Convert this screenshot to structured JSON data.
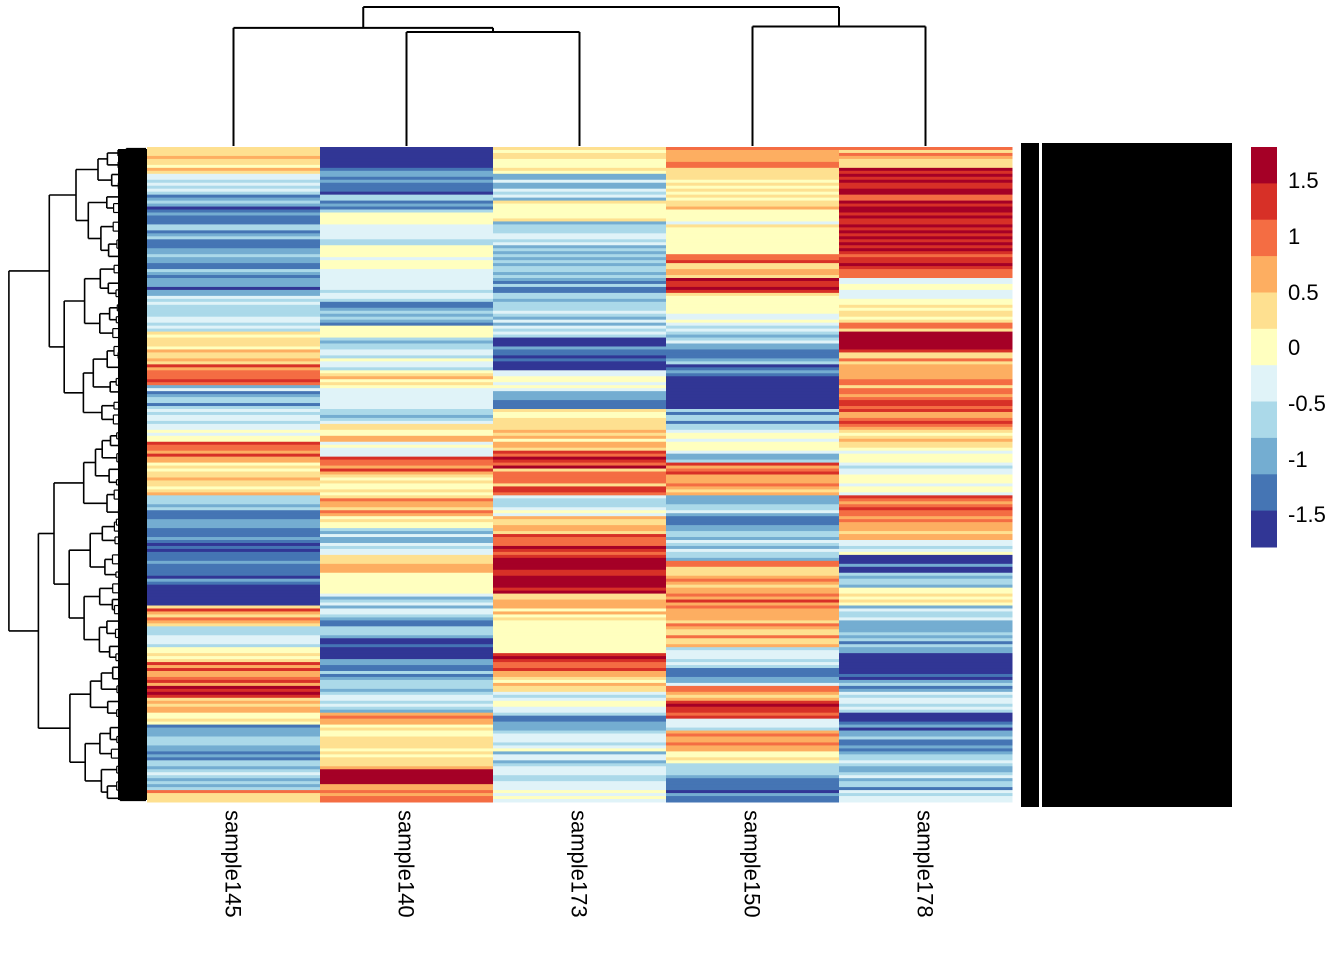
{
  "chart_data": {
    "type": "heatmap",
    "title": "",
    "columns": [
      "sample145",
      "sample140",
      "sample173",
      "sample150",
      "sample178"
    ],
    "row_labels_note": "Hundreds of gene row labels rendered overlapping into an illegible black block",
    "legend": {
      "placement": "right",
      "breaks": [
        1.75,
        1.5,
        1.25,
        1.0,
        0.75,
        0.5,
        0.25,
        0.0,
        -0.25,
        -0.5,
        -0.75,
        -1.0,
        -1.25,
        -1.5,
        -1.75
      ],
      "tick_values": [
        1.5,
        1,
        0.5,
        0,
        -0.5,
        -1,
        -1.5
      ],
      "tick_labels": [
        "1.5",
        "1",
        "0.5",
        "0",
        "-0.5",
        "-1",
        "-1.5"
      ],
      "colors": [
        "#A50026",
        "#D73027",
        "#F46D43",
        "#FDAE61",
        "#FEE090",
        "#FFFFBF",
        "#E0F3F8",
        "#ABD9E9",
        "#74ADD1",
        "#4575B4",
        "#313695"
      ],
      "color_values": [
        1.625,
        1.375,
        1.125,
        0.875,
        0.625,
        0.25,
        -0.375,
        -0.625,
        -0.875,
        -1.125,
        -1.375
      ]
    },
    "column_dendrogram": {
      "order": [
        "sample145",
        "sample140",
        "sample173",
        "sample150",
        "sample178"
      ],
      "merges": [
        {
          "left": "sample140",
          "right": "sample173",
          "height": 0.82
        },
        {
          "left": "sample145",
          "right": "sample140+sample173",
          "height": 0.85
        },
        {
          "left": "sample150",
          "right": "sample178",
          "height": 0.86
        },
        {
          "left": "left-cluster",
          "right": "right-cluster",
          "height": 1.0
        }
      ]
    },
    "row_blocks": {
      "description": "Approximate z-score blocks per column from top (row 0) to bottom (row 1); values in z-score units",
      "sample145": [
        [
          0.0,
          0.6
        ],
        [
          0.04,
          -0.4
        ],
        [
          0.07,
          -1.0
        ],
        [
          0.13,
          -0.9
        ],
        [
          0.17,
          -1.0
        ],
        [
          0.22,
          -0.5
        ],
        [
          0.26,
          -0.3
        ],
        [
          0.28,
          0.6
        ],
        [
          0.33,
          1.2
        ],
        [
          0.36,
          -0.8
        ],
        [
          0.4,
          -0.5
        ],
        [
          0.43,
          0.0
        ],
        [
          0.45,
          1.1
        ],
        [
          0.48,
          0.3
        ],
        [
          0.5,
          0.7
        ],
        [
          0.53,
          -0.9
        ],
        [
          0.58,
          -1.2
        ],
        [
          0.62,
          -1.0
        ],
        [
          0.66,
          -1.5
        ],
        [
          0.7,
          1.0
        ],
        [
          0.73,
          -0.4
        ],
        [
          0.76,
          0.2
        ],
        [
          0.78,
          1.0
        ],
        [
          0.82,
          1.5
        ],
        [
          0.84,
          0.7
        ],
        [
          0.86,
          0.5
        ],
        [
          0.88,
          -0.8
        ],
        [
          0.92,
          -1.0
        ],
        [
          0.95,
          -0.5
        ],
        [
          0.97,
          -0.9
        ],
        [
          0.98,
          0.8
        ]
      ],
      "sample140": [
        [
          0.0,
          -1.7
        ],
        [
          0.03,
          -1.1
        ],
        [
          0.07,
          -0.9
        ],
        [
          0.1,
          0.1
        ],
        [
          0.13,
          -0.4
        ],
        [
          0.15,
          0.1
        ],
        [
          0.2,
          -0.3
        ],
        [
          0.23,
          -0.8
        ],
        [
          0.27,
          0.2
        ],
        [
          0.29,
          -0.6
        ],
        [
          0.31,
          -0.4
        ],
        [
          0.34,
          0.5
        ],
        [
          0.36,
          -0.2
        ],
        [
          0.38,
          -0.5
        ],
        [
          0.42,
          0.6
        ],
        [
          0.45,
          -0.3
        ],
        [
          0.47,
          1.1
        ],
        [
          0.5,
          0.4
        ],
        [
          0.53,
          0.9
        ],
        [
          0.56,
          0.2
        ],
        [
          0.58,
          -0.6
        ],
        [
          0.62,
          0.8
        ],
        [
          0.65,
          0.5
        ],
        [
          0.68,
          -0.6
        ],
        [
          0.72,
          -0.8
        ],
        [
          0.75,
          -1.3
        ],
        [
          0.78,
          -0.9
        ],
        [
          0.82,
          -0.5
        ],
        [
          0.86,
          1.0
        ],
        [
          0.88,
          0.4
        ],
        [
          0.92,
          0.6
        ],
        [
          0.95,
          1.6
        ],
        [
          0.97,
          0.9
        ]
      ],
      "sample173": [
        [
          0.0,
          0.4
        ],
        [
          0.04,
          -0.6
        ],
        [
          0.08,
          0.4
        ],
        [
          0.11,
          -0.8
        ],
        [
          0.13,
          -0.6
        ],
        [
          0.17,
          -0.9
        ],
        [
          0.22,
          -0.6
        ],
        [
          0.27,
          -0.4
        ],
        [
          0.29,
          -1.3
        ],
        [
          0.31,
          -1.5
        ],
        [
          0.34,
          -0.1
        ],
        [
          0.37,
          -0.9
        ],
        [
          0.4,
          0.5
        ],
        [
          0.43,
          0.7
        ],
        [
          0.46,
          1.3
        ],
        [
          0.49,
          0.9
        ],
        [
          0.51,
          1.0
        ],
        [
          0.53,
          -0.3
        ],
        [
          0.56,
          0.8
        ],
        [
          0.59,
          1.3
        ],
        [
          0.62,
          1.6
        ],
        [
          0.68,
          0.6
        ],
        [
          0.72,
          0.1
        ],
        [
          0.75,
          0.2
        ],
        [
          0.77,
          1.2
        ],
        [
          0.8,
          0.6
        ],
        [
          0.83,
          -0.3
        ],
        [
          0.86,
          -0.9
        ],
        [
          0.89,
          -0.3
        ],
        [
          0.92,
          -0.6
        ],
        [
          0.96,
          -0.4
        ],
        [
          0.98,
          0.1
        ]
      ],
      "sample150": [
        [
          0.0,
          0.8
        ],
        [
          0.05,
          0.5
        ],
        [
          0.1,
          0.2
        ],
        [
          0.13,
          0.1
        ],
        [
          0.16,
          1.0
        ],
        [
          0.2,
          1.6
        ],
        [
          0.22,
          0.4
        ],
        [
          0.25,
          0.0
        ],
        [
          0.27,
          -0.6
        ],
        [
          0.29,
          -0.4
        ],
        [
          0.3,
          -0.9
        ],
        [
          0.33,
          -1.1
        ],
        [
          0.35,
          -1.6
        ],
        [
          0.4,
          -0.8
        ],
        [
          0.43,
          0.1
        ],
        [
          0.46,
          -0.6
        ],
        [
          0.48,
          1.1
        ],
        [
          0.5,
          0.8
        ],
        [
          0.53,
          -0.5
        ],
        [
          0.56,
          -0.9
        ],
        [
          0.6,
          -0.5
        ],
        [
          0.63,
          0.9
        ],
        [
          0.68,
          1.0
        ],
        [
          0.73,
          0.7
        ],
        [
          0.76,
          -0.3
        ],
        [
          0.79,
          -0.8
        ],
        [
          0.82,
          0.9
        ],
        [
          0.84,
          1.2
        ],
        [
          0.87,
          -0.3
        ],
        [
          0.89,
          0.9
        ],
        [
          0.92,
          0.4
        ],
        [
          0.94,
          -0.8
        ],
        [
          0.98,
          -1.0
        ]
      ],
      "sample178": [
        [
          0.0,
          0.9
        ],
        [
          0.03,
          1.6
        ],
        [
          0.07,
          1.3
        ],
        [
          0.12,
          1.6
        ],
        [
          0.16,
          1.2
        ],
        [
          0.2,
          -0.2
        ],
        [
          0.23,
          0.3
        ],
        [
          0.26,
          0.9
        ],
        [
          0.28,
          1.6
        ],
        [
          0.31,
          0.8
        ],
        [
          0.35,
          0.9
        ],
        [
          0.38,
          1.2
        ],
        [
          0.43,
          0.5
        ],
        [
          0.46,
          0.0
        ],
        [
          0.48,
          -0.5
        ],
        [
          0.5,
          0.1
        ],
        [
          0.53,
          1.1
        ],
        [
          0.57,
          0.7
        ],
        [
          0.6,
          -0.3
        ],
        [
          0.62,
          -1.3
        ],
        [
          0.65,
          -0.9
        ],
        [
          0.67,
          0.3
        ],
        [
          0.7,
          -0.6
        ],
        [
          0.74,
          -0.9
        ],
        [
          0.77,
          -1.5
        ],
        [
          0.81,
          -0.8
        ],
        [
          0.83,
          -0.4
        ],
        [
          0.86,
          -1.3
        ],
        [
          0.9,
          -1.0
        ],
        [
          0.93,
          -0.6
        ],
        [
          0.96,
          -0.8
        ],
        [
          0.98,
          -0.5
        ]
      ]
    }
  }
}
